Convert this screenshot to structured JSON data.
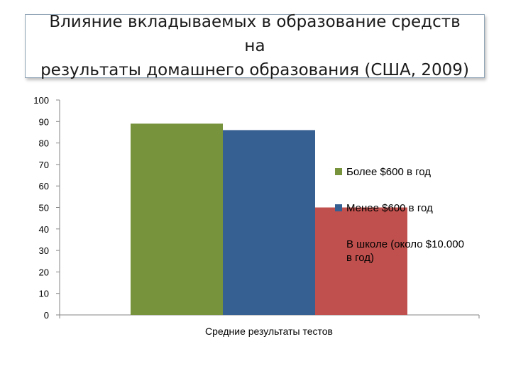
{
  "chart_data": {
    "type": "bar",
    "title": "Влияние вкладываемых в образование средств на результаты домашнего образования (США, 2009)",
    "title_lines": [
      "Влияние вкладываемых в образование средств на",
      "результаты домашнего образования (США, 2009)"
    ],
    "categories": [
      "Средние результаты тестов"
    ],
    "series": [
      {
        "name": "Более $600 в год",
        "values": [
          89
        ],
        "color": "#77933c"
      },
      {
        "name": "Менее $600 в год",
        "values": [
          86
        ],
        "color": "#376092"
      },
      {
        "name": "В школе (около $10.000 в год)",
        "name_lines": [
          "В школе (около $10.000",
          " в год)"
        ],
        "values": [
          50
        ],
        "color": "#c0504d"
      }
    ],
    "ylim": [
      0,
      100
    ],
    "yticks": [
      "0",
      "10",
      "20",
      "30",
      "40",
      "50",
      "60",
      "70",
      "80",
      "90",
      "100"
    ],
    "grid": false,
    "legend": "right"
  }
}
